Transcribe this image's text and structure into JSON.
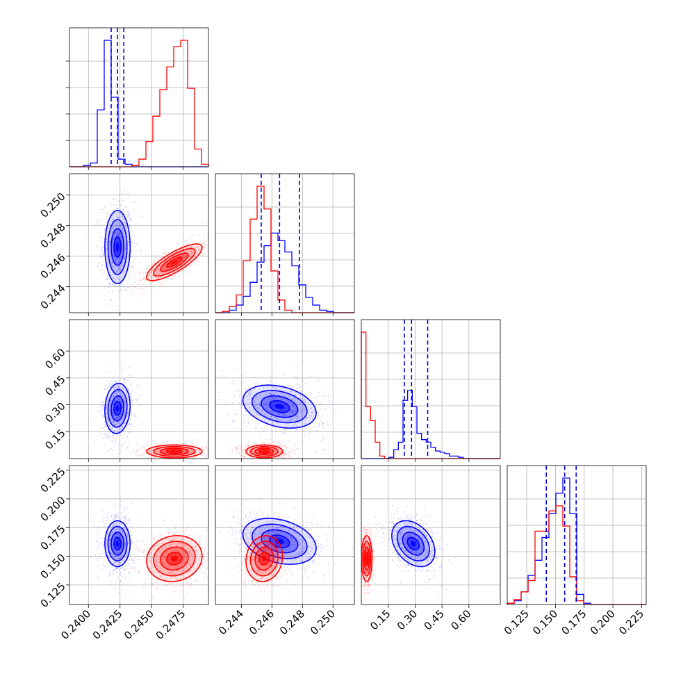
{
  "chart_data": {
    "type": "corner",
    "title": "",
    "grid": true,
    "colors": {
      "run_a": "#0000ff",
      "run_b": "#ff0000",
      "quantile_lines": "#0000dd"
    },
    "params": [
      {
        "range": [
          0.2385,
          0.2495
        ],
        "ticks": [
          0.24,
          0.2425,
          0.245,
          0.2475
        ],
        "tick_labels": [
          "0.2400",
          "0.2425",
          "0.2450",
          "0.2475"
        ]
      },
      {
        "range": [
          0.2423,
          0.2514
        ],
        "ticks": [
          0.244,
          0.246,
          0.248,
          0.25
        ],
        "tick_labels": [
          "0.244",
          "0.246",
          "0.248",
          "0.250"
        ]
      },
      {
        "range": [
          0.0,
          0.775
        ],
        "ticks": [
          0.15,
          0.3,
          0.45,
          0.6
        ],
        "tick_labels": [
          "0.15",
          "0.30",
          "0.45",
          "0.60"
        ]
      },
      {
        "range": [
          0.108,
          0.229
        ],
        "ticks": [
          0.125,
          0.15,
          0.175,
          0.2,
          0.225
        ],
        "tick_labels": [
          "0.125",
          "0.150",
          "0.175",
          "0.200",
          "0.225"
        ]
      }
    ],
    "quantiles": [
      [
        0.2418,
        0.2423,
        0.2428
      ],
      [
        0.2453,
        0.2465,
        0.2478
      ],
      [
        0.24,
        0.28,
        0.37
      ],
      [
        0.142,
        0.158,
        0.168
      ]
    ],
    "histograms": [
      {
        "edges": [
          0.2385,
          0.2495
        ],
        "a": [
          0,
          0,
          1,
          3,
          45,
          100,
          55,
          6,
          2,
          0,
          0,
          0,
          0,
          0,
          0,
          0,
          0,
          0,
          0,
          0
        ],
        "b": [
          0,
          0,
          0,
          0,
          0,
          0,
          0,
          0,
          0,
          1,
          6,
          20,
          40,
          61,
          79,
          95,
          100,
          62,
          14,
          2
        ]
      },
      {
        "edges": [
          0.2423,
          0.2514
        ],
        "a": [
          0,
          0,
          2,
          6,
          13,
          24,
          40,
          53,
          63,
          57,
          48,
          37,
          22,
          12,
          6,
          2,
          1,
          0,
          0,
          0
        ],
        "b": [
          0,
          1,
          5,
          14,
          41,
          74,
          100,
          82,
          33,
          10,
          2,
          0,
          0,
          0,
          0,
          0,
          0,
          0,
          0,
          0
        ]
      },
      {
        "edges": [
          0.0,
          0.775
        ],
        "a": [
          0,
          0,
          0,
          0,
          0,
          0,
          1,
          7,
          13,
          46,
          54,
          41,
          20,
          15,
          13,
          9,
          6,
          5,
          4,
          2,
          2,
          1,
          0,
          0,
          0,
          0,
          0,
          0,
          0,
          0
        ],
        "b": [
          100,
          41,
          30,
          13,
          2,
          0,
          0,
          0,
          0,
          0,
          0,
          0,
          0,
          0,
          0,
          0,
          0,
          0,
          0,
          0,
          0,
          0,
          0,
          0,
          0,
          0,
          0,
          0,
          0,
          0
        ]
      },
      {
        "edges": [
          0.108,
          0.229
        ],
        "a": [
          1,
          3,
          10,
          23,
          35,
          53,
          72,
          88,
          100,
          72,
          8,
          1,
          0,
          0,
          0,
          0,
          0,
          0,
          0,
          0
        ],
        "b": [
          1,
          4,
          10,
          19,
          58,
          58,
          74,
          78,
          62,
          22,
          3,
          0,
          0,
          0,
          0,
          0,
          0,
          0,
          0,
          0
        ]
      }
    ],
    "clusters": [
      {
        "x": 0,
        "y": 1,
        "a": {
          "cx": 0.2423,
          "cy": 0.2466,
          "sx": 0.0005,
          "sy": 0.0012,
          "rho": 0.0
        },
        "b": {
          "cx": 0.2468,
          "cy": 0.2456,
          "sx": 0.0011,
          "sy": 0.0006,
          "rho": 0.8
        }
      },
      {
        "x": 0,
        "y": 2,
        "a": {
          "cx": 0.2423,
          "cy": 0.28,
          "sx": 0.0005,
          "sy": 0.07,
          "rho": 0.1
        },
        "b": {
          "cx": 0.2468,
          "cy": 0.04,
          "sx": 0.0011,
          "sy": 0.018,
          "rho": 0.0
        }
      },
      {
        "x": 0,
        "y": 3,
        "a": {
          "cx": 0.2423,
          "cy": 0.161,
          "sx": 0.0005,
          "sy": 0.01,
          "rho": 0.0
        },
        "b": {
          "cx": 0.2468,
          "cy": 0.148,
          "sx": 0.0011,
          "sy": 0.01,
          "rho": 0.1
        }
      },
      {
        "x": 1,
        "y": 2,
        "a": {
          "cx": 0.2465,
          "cy": 0.29,
          "sx": 0.0012,
          "sy": 0.06,
          "rho": -0.3
        },
        "b": {
          "cx": 0.2455,
          "cy": 0.04,
          "sx": 0.0006,
          "sy": 0.018,
          "rho": 0.0
        }
      },
      {
        "x": 1,
        "y": 3,
        "a": {
          "cx": 0.2465,
          "cy": 0.163,
          "sx": 0.0012,
          "sy": 0.01,
          "rho": -0.3
        },
        "b": {
          "cx": 0.2455,
          "cy": 0.148,
          "sx": 0.0006,
          "sy": 0.01,
          "rho": 0.1
        }
      },
      {
        "x": 2,
        "y": 3,
        "a": {
          "cx": 0.29,
          "cy": 0.161,
          "sx": 0.06,
          "sy": 0.01,
          "rho": -0.35
        },
        "b": {
          "cx": 0.03,
          "cy": 0.148,
          "sx": 0.015,
          "sy": 0.01,
          "rho": 0.0
        }
      }
    ]
  }
}
